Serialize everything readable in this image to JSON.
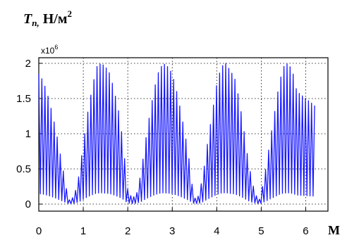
{
  "chart_data": {
    "type": "line",
    "ylabel_main": "T",
    "ylabel_sub": "n,",
    "ylabel_units": " H/м",
    "ylabel_exp": "2",
    "y_multiplier_base": "x10",
    "y_multiplier_exp": "6",
    "xlabel": "M",
    "xlim": [
      0,
      6.5
    ],
    "ylim": [
      -0.1,
      2.08
    ],
    "x_ticks": [
      0,
      1,
      2,
      3,
      4,
      5,
      6
    ],
    "x_tick_labels": [
      "0",
      "1",
      "2",
      "3",
      "4",
      "5",
      "6"
    ],
    "y_ticks": [
      0,
      0.5,
      1,
      1.5,
      2
    ],
    "y_tick_labels": [
      "0",
      "0.5",
      "1",
      "1.5",
      "2"
    ],
    "grid": true,
    "line_color": "#1a1aff",
    "x_max_data": 6.2,
    "envelope": {
      "description_free": true,
      "x": [
        0.0,
        0.1,
        0.2,
        0.3,
        0.4,
        0.5,
        0.6,
        0.65,
        0.7,
        0.8,
        0.9,
        1.0,
        1.1,
        1.2,
        1.3,
        1.4,
        1.5,
        1.6,
        1.7,
        1.8,
        1.9,
        1.95,
        2.0,
        2.1,
        2.2,
        2.3,
        2.4,
        2.5,
        2.6,
        2.7,
        2.8,
        2.9,
        3.0,
        3.1,
        3.2,
        3.3,
        3.4,
        3.45,
        3.5,
        3.6,
        3.7,
        3.8,
        3.9,
        4.0,
        4.1,
        4.2,
        4.3,
        4.4,
        4.5,
        4.6,
        4.7,
        4.8,
        4.9,
        4.95,
        5.0,
        5.1,
        5.2,
        5.3,
        5.4,
        5.5,
        5.6,
        5.7,
        5.8,
        5.9,
        6.0,
        6.1,
        6.2
      ],
      "y": [
        1.85,
        1.75,
        1.55,
        1.3,
        1.0,
        0.65,
        0.3,
        0.1,
        0.05,
        0.12,
        0.4,
        0.85,
        1.3,
        1.65,
        1.95,
        2.0,
        1.95,
        1.85,
        1.6,
        1.3,
        0.85,
        0.5,
        0.2,
        0.08,
        0.15,
        0.45,
        0.9,
        1.3,
        1.65,
        1.9,
        2.0,
        1.95,
        1.85,
        1.6,
        1.3,
        0.95,
        0.55,
        0.25,
        0.08,
        0.12,
        0.45,
        0.9,
        1.3,
        1.7,
        1.95,
        2.0,
        1.9,
        1.8,
        1.5,
        1.1,
        0.65,
        0.3,
        0.1,
        0.05,
        0.15,
        0.5,
        0.9,
        1.3,
        1.7,
        1.95,
        2.0,
        1.9,
        1.6,
        1.55,
        1.5,
        1.45,
        1.4
      ]
    }
  }
}
